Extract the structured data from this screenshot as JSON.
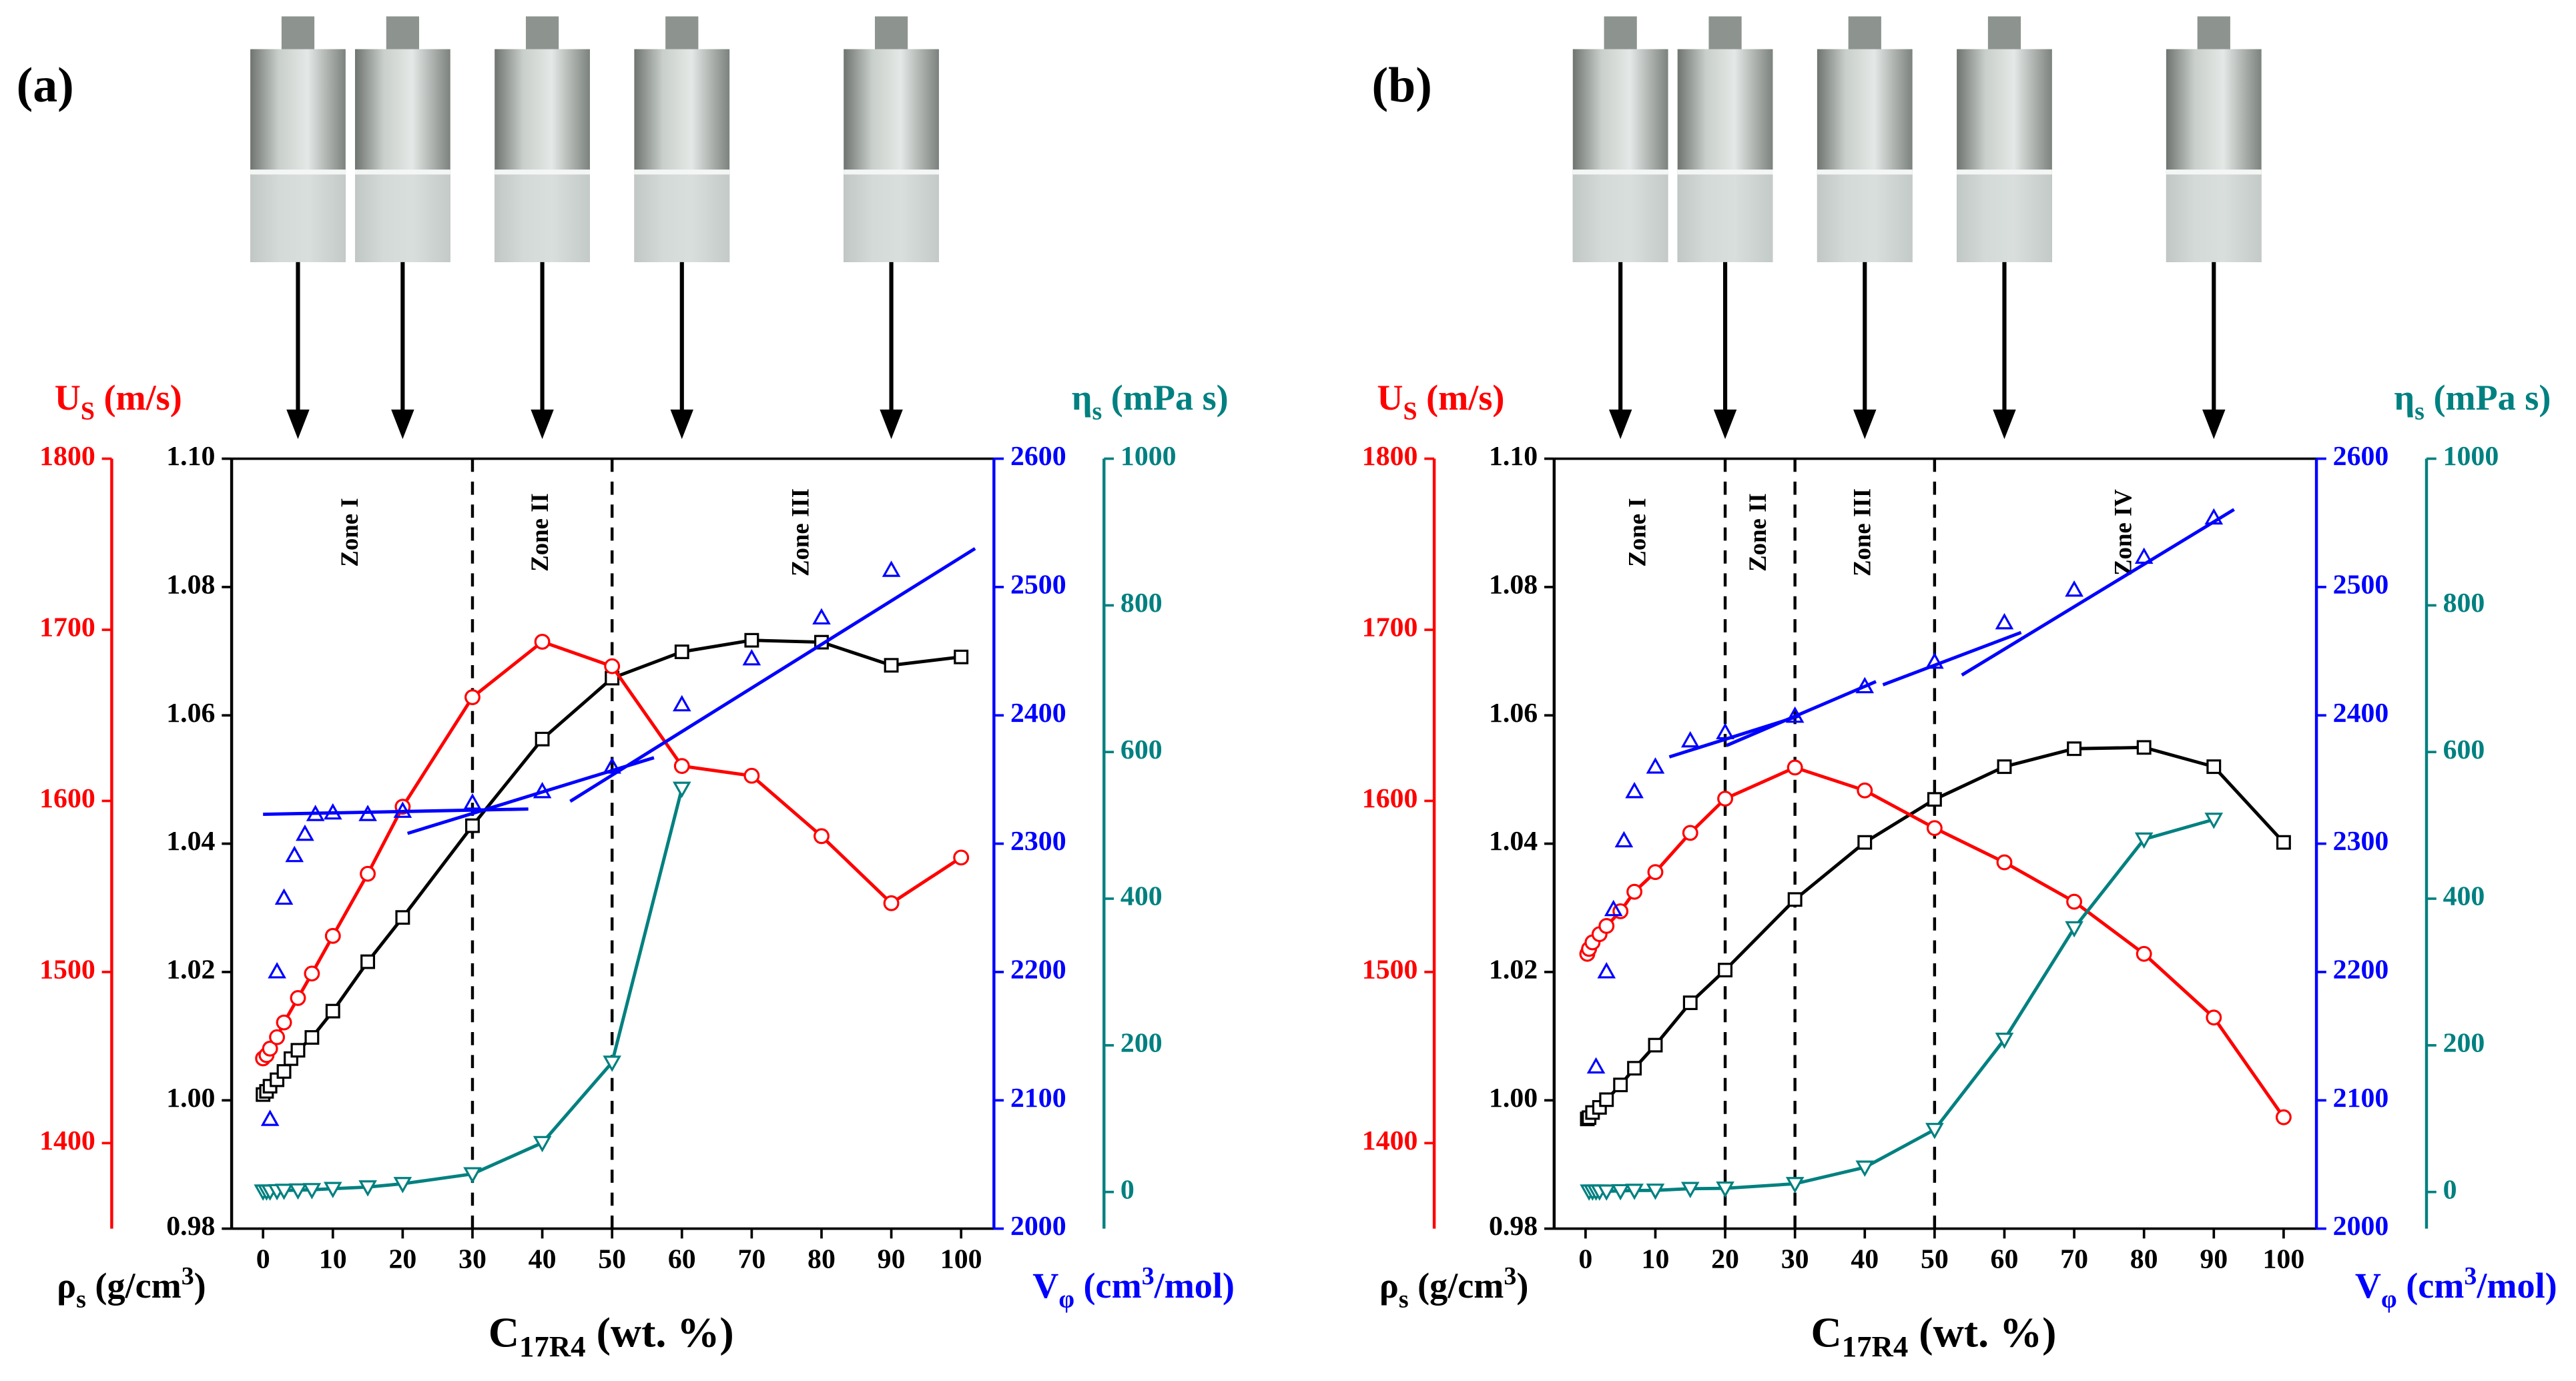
{
  "chart_data": [
    {
      "type": "line",
      "panel_label": "(a)",
      "x_label": {
        "symbol": "C",
        "subscript": "17R4",
        "unit": " (wt. %)"
      },
      "xlim": [
        -4.5,
        104.7
      ],
      "xticks": [
        0,
        10,
        20,
        30,
        40,
        50,
        60,
        70,
        80,
        90,
        100
      ],
      "y_label": {
        "symbol": "ρ",
        "subscript": "s",
        "unit": " (g/cm",
        "superscript": "3",
        "unit_end": ")"
      },
      "ylim": [
        0.98,
        1.1
      ],
      "yticks": [
        0.98,
        {
          "value": 1,
          "label": "1.00"
        },
        1.02,
        1.04,
        1.06,
        1.08,
        {
          "value": 1.1,
          "label": "1.10"
        }
      ],
      "y_color": "#000000",
      "y2_label": {
        "symbol": "V",
        "subscript": "φ",
        "unit": " (cm",
        "superscript": "3",
        "unit_end": "/mol)"
      },
      "y2lim": [
        2000,
        2600
      ],
      "y2ticks": [
        2000,
        2100,
        2200,
        2300,
        2400,
        2500,
        2600
      ],
      "y2_color": "#0000ff",
      "y3_label": {
        "symbol": "U",
        "subscript": "S",
        "unit": " (m/s)"
      },
      "y3lim": [
        1350,
        1800
      ],
      "y3ticks": [
        1400,
        1500,
        1600,
        1700,
        1800
      ],
      "y3_color": "#ff0000",
      "y4_label": {
        "symbol": "η",
        "subscript": "s",
        "unit": " (mPa s)"
      },
      "y4lim": [
        -50,
        1000
      ],
      "y4ticks": [
        0,
        200,
        400,
        600,
        800,
        1000
      ],
      "y4_color": "#008080",
      "zone_labels": [
        "Zone I",
        "Zone II",
        "Zone III"
      ],
      "zone_bounds": [
        30,
        50
      ],
      "arrows": [
        5,
        20,
        40,
        60,
        90
      ],
      "series": [
        {
          "axis": "y",
          "color": "#000000",
          "marker": "square",
          "line": true,
          "x": [
            0,
            0.5,
            1,
            2,
            3,
            4,
            5,
            7,
            10,
            15,
            20,
            30,
            40,
            50,
            60,
            70,
            80,
            90,
            100
          ],
          "values": [
            1.0009,
            1.0014,
            1.0022,
            1.0032,
            1.0045,
            1.0065,
            1.0078,
            1.0098,
            1.0139,
            1.0216,
            1.0285,
            1.0428,
            1.0563,
            1.0658,
            1.0699,
            1.0717,
            1.0714,
            1.0678,
            1.0691
          ]
        },
        {
          "axis": "y3",
          "color": "#ff0000",
          "marker": "circle",
          "line": true,
          "x": [
            0,
            0.5,
            1,
            2,
            3,
            5,
            7,
            10,
            15,
            20,
            30,
            40,
            50,
            60,
            70,
            80,
            90,
            100
          ],
          "values": [
            1449.5,
            1451.4,
            1455.2,
            1461.9,
            1470.5,
            1484.8,
            1499.1,
            1521.1,
            1557.4,
            1596.6,
            1660.6,
            1693.0,
            1678.7,
            1620.4,
            1614.7,
            1579.4,
            1540.2,
            1566.9
          ]
        },
        {
          "axis": "y2",
          "color": "#0000ff",
          "marker": "triangle-up",
          "line": false,
          "x": [
            1,
            2,
            3,
            4.5,
            6,
            7.5,
            10,
            15,
            20,
            30,
            40,
            50,
            60,
            70,
            80,
            90
          ],
          "values": [
            2085.3,
            2200.3,
            2257.7,
            2290.9,
            2307.5,
            2322.9,
            2324.1,
            2322.9,
            2325.4,
            2331.8,
            2340.7,
            2359.9,
            2408.4,
            2444.2,
            2476.1,
            2513.2
          ]
        },
        {
          "axis": "y2",
          "color": "#0000ff",
          "line": true,
          "x": [
            0,
            38
          ],
          "values": [
            2322.9,
            2327
          ]
        },
        {
          "axis": "y2",
          "color": "#0000ff",
          "line": true,
          "x": [
            20.7,
            56
          ],
          "values": [
            2308,
            2367
          ]
        },
        {
          "axis": "y2",
          "color": "#0000ff",
          "line": true,
          "x": [
            44,
            102
          ],
          "values": [
            2333,
            2530
          ]
        },
        {
          "axis": "y4",
          "color": "#008080",
          "marker": "triangle-down",
          "line": true,
          "x": [
            0,
            0.5,
            1,
            2,
            3,
            5,
            7,
            10,
            15,
            20,
            30,
            40,
            50,
            60
          ],
          "values": [
            1,
            1,
            1,
            1.5,
            2,
            2.5,
            3,
            4.5,
            6.7,
            11.2,
            24.6,
            67.1,
            176.7,
            550.3
          ]
        }
      ]
    },
    {
      "type": "line",
      "panel_label": "(b)",
      "x_label": {
        "symbol": "C",
        "subscript": "17R4",
        "unit": " (wt. %)"
      },
      "xlim": [
        -4.5,
        104.7
      ],
      "xticks": [
        0,
        10,
        20,
        30,
        40,
        50,
        60,
        70,
        80,
        90,
        100
      ],
      "y_label": {
        "symbol": "ρ",
        "subscript": "s",
        "unit": " (g/cm",
        "superscript": "3",
        "unit_end": ")"
      },
      "ylim": [
        0.98,
        1.1
      ],
      "yticks": [
        0.98,
        {
          "value": 1,
          "label": "1.00"
        },
        1.02,
        1.04,
        1.06,
        1.08,
        {
          "value": 1.1,
          "label": "1.10"
        }
      ],
      "y_color": "#000000",
      "y2_label": {
        "symbol": "V",
        "subscript": "φ",
        "unit": " (cm",
        "superscript": "3",
        "unit_end": "/mol)"
      },
      "y2lim": [
        2000,
        2600
      ],
      "y2ticks": [
        2000,
        2100,
        2200,
        2300,
        2400,
        2500,
        2600
      ],
      "y2_color": "#0000ff",
      "y3_label": {
        "symbol": "U",
        "subscript": "S",
        "unit": " (m/s)"
      },
      "y3lim": [
        1350,
        1800
      ],
      "y3ticks": [
        1400,
        1500,
        1600,
        1700,
        1800
      ],
      "y3_color": "#ff0000",
      "y4_label": {
        "symbol": "η",
        "subscript": "s",
        "unit": " (mPa s)"
      },
      "y4lim": [
        -50,
        1000
      ],
      "y4ticks": [
        0,
        200,
        400,
        600,
        800,
        1000
      ],
      "y4_color": "#008080",
      "zone_labels": [
        "Zone I",
        "Zone II",
        "Zone III",
        "Zone IV"
      ],
      "zone_bounds": [
        20,
        30,
        50
      ],
      "arrows": [
        5,
        20,
        40,
        60,
        90
      ],
      "series": [
        {
          "axis": "y",
          "color": "#000000",
          "marker": "square",
          "line": true,
          "x": [
            0.25,
            0.5,
            1,
            2,
            3,
            5,
            7,
            10,
            15,
            20,
            30,
            40,
            50,
            60,
            70,
            80,
            90,
            100
          ],
          "values": [
            0.9971,
            0.9973,
            0.9981,
            0.9989,
            1.0001,
            1.0024,
            1.005,
            1.0086,
            1.0152,
            1.0203,
            1.0313,
            1.0402,
            1.0469,
            1.052,
            1.0548,
            1.055,
            1.052,
            1.0402
          ]
        },
        {
          "axis": "y3",
          "color": "#ff0000",
          "marker": "circle",
          "line": true,
          "x": [
            0.25,
            0.5,
            1,
            2,
            3,
            5,
            7,
            10,
            15,
            20,
            30,
            40,
            50,
            60,
            70,
            80,
            90,
            100
          ],
          "values": [
            1510.6,
            1513.5,
            1517.3,
            1522.1,
            1526.9,
            1535.5,
            1546.9,
            1558.4,
            1581.3,
            1601.3,
            1619.5,
            1606.1,
            1584.1,
            1564.1,
            1541.1,
            1510.6,
            1473.4,
            1415.1
          ]
        },
        {
          "axis": "y2",
          "color": "#0000ff",
          "marker": "triangle-up",
          "line": false,
          "x": [
            1.5,
            3,
            4,
            5.5,
            7,
            10,
            15,
            20,
            30,
            40,
            50,
            60,
            70,
            80,
            90
          ],
          "values": [
            2126.2,
            2200.3,
            2248.8,
            2302.4,
            2340.7,
            2359.9,
            2380.3,
            2386.7,
            2399.5,
            2422.5,
            2441.6,
            2472.3,
            2497.8,
            2523.4,
            2554.0
          ]
        },
        {
          "axis": "y2",
          "color": "#0000ff",
          "line": true,
          "x": [
            12,
            30.6
          ],
          "values": [
            2367.6,
            2399.5
          ]
        },
        {
          "axis": "y2",
          "color": "#0000ff",
          "line": true,
          "x": [
            20.2,
            41.6
          ],
          "values": [
            2376.5,
            2426.3
          ]
        },
        {
          "axis": "y2",
          "color": "#0000ff",
          "line": true,
          "x": [
            42.6,
            62.4
          ],
          "values": [
            2423.8,
            2464.6
          ]
        },
        {
          "axis": "y2",
          "color": "#0000ff",
          "line": true,
          "x": [
            53.9,
            92.9
          ],
          "values": [
            2431.4,
            2560.4
          ]
        },
        {
          "axis": "y4",
          "color": "#008080",
          "marker": "triangle-down",
          "line": true,
          "x": [
            0.5,
            1,
            1.5,
            2,
            3,
            5,
            7,
            10,
            15,
            20,
            30,
            40,
            50,
            60,
            70,
            80,
            90
          ],
          "values": [
            1,
            1,
            1,
            1,
            1,
            1.5,
            2,
            2.2,
            4.5,
            5,
            11.2,
            33.6,
            85,
            208,
            360,
            481,
            508
          ]
        }
      ]
    }
  ]
}
